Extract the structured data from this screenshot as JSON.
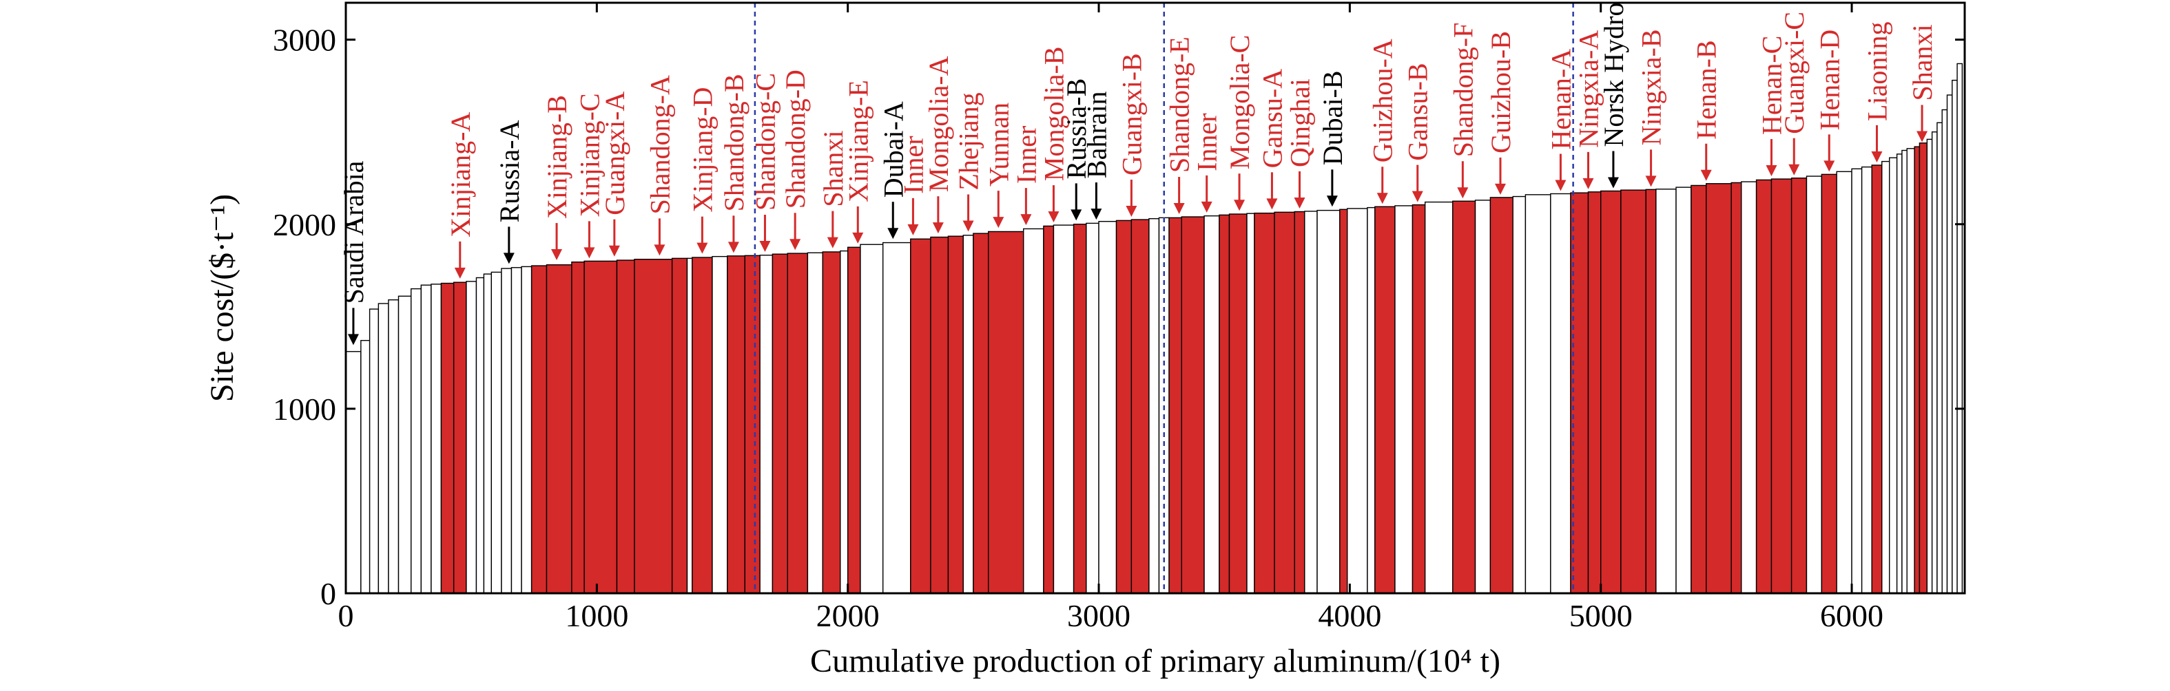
{
  "chart_data": {
    "type": "bar",
    "subtype": "cost-curve (variable-width cumulative bars)",
    "xlabel": "Cumulative production of primary aluminum/(10⁴ t)",
    "ylabel": "Site cost/($·t⁻¹)",
    "xlim": [
      0,
      6450
    ],
    "ylim": [
      0,
      3200
    ],
    "xticks": [
      0,
      1000,
      2000,
      3000,
      4000,
      5000,
      6000
    ],
    "yticks": [
      0,
      1000,
      2000,
      3000
    ],
    "grid": false,
    "legend": "none",
    "colors": {
      "highlight": "#d42a2a",
      "normal": "#ffffff",
      "label_red": "#d42a2a",
      "label_black": "#000000",
      "guide_line": "#2a3aa8"
    },
    "vertical_guides_x": [
      1630,
      3260,
      4890
    ],
    "bars": [
      [
        0,
        60,
        1310,
        0
      ],
      [
        60,
        95,
        1370,
        0
      ],
      [
        95,
        130,
        1540,
        0
      ],
      [
        130,
        170,
        1570,
        0
      ],
      [
        170,
        210,
        1590,
        0
      ],
      [
        210,
        260,
        1610,
        0
      ],
      [
        260,
        300,
        1650,
        0
      ],
      [
        300,
        340,
        1670,
        0
      ],
      [
        340,
        380,
        1675,
        0
      ],
      [
        380,
        430,
        1680,
        1
      ],
      [
        430,
        480,
        1685,
        1
      ],
      [
        480,
        520,
        1690,
        0
      ],
      [
        520,
        550,
        1710,
        0
      ],
      [
        550,
        580,
        1730,
        0
      ],
      [
        580,
        620,
        1740,
        0
      ],
      [
        620,
        660,
        1760,
        0
      ],
      [
        660,
        700,
        1765,
        0
      ],
      [
        700,
        740,
        1770,
        0
      ],
      [
        740,
        800,
        1775,
        1
      ],
      [
        800,
        900,
        1780,
        1
      ],
      [
        900,
        950,
        1795,
        1
      ],
      [
        950,
        1080,
        1800,
        1
      ],
      [
        1080,
        1150,
        1805,
        1
      ],
      [
        1150,
        1300,
        1810,
        1
      ],
      [
        1300,
        1360,
        1815,
        1
      ],
      [
        1360,
        1380,
        1815,
        0
      ],
      [
        1380,
        1460,
        1820,
        1
      ],
      [
        1460,
        1520,
        1825,
        0
      ],
      [
        1520,
        1590,
        1828,
        1
      ],
      [
        1590,
        1650,
        1830,
        1
      ],
      [
        1650,
        1700,
        1832,
        0
      ],
      [
        1700,
        1760,
        1838,
        1
      ],
      [
        1760,
        1840,
        1842,
        1
      ],
      [
        1840,
        1900,
        1845,
        0
      ],
      [
        1900,
        1970,
        1850,
        1
      ],
      [
        1970,
        2000,
        1855,
        0
      ],
      [
        2000,
        2050,
        1875,
        1
      ],
      [
        2050,
        2140,
        1890,
        0
      ],
      [
        2140,
        2250,
        1900,
        0
      ],
      [
        2250,
        2330,
        1920,
        1
      ],
      [
        2330,
        2400,
        1930,
        1
      ],
      [
        2400,
        2460,
        1935,
        1
      ],
      [
        2460,
        2500,
        1940,
        0
      ],
      [
        2500,
        2560,
        1950,
        1
      ],
      [
        2560,
        2700,
        1960,
        1
      ],
      [
        2700,
        2780,
        1975,
        0
      ],
      [
        2780,
        2820,
        1990,
        1
      ],
      [
        2820,
        2900,
        1995,
        0
      ],
      [
        2900,
        2950,
        2000,
        1
      ],
      [
        2950,
        3000,
        2005,
        0
      ],
      [
        3000,
        3070,
        2015,
        0
      ],
      [
        3070,
        3130,
        2020,
        1
      ],
      [
        3130,
        3200,
        2025,
        1
      ],
      [
        3200,
        3240,
        2030,
        0
      ],
      [
        3240,
        3280,
        2035,
        0
      ],
      [
        3280,
        3330,
        2035,
        1
      ],
      [
        3330,
        3420,
        2040,
        1
      ],
      [
        3420,
        3480,
        2045,
        0
      ],
      [
        3480,
        3520,
        2050,
        1
      ],
      [
        3520,
        3590,
        2055,
        1
      ],
      [
        3590,
        3620,
        2058,
        0
      ],
      [
        3620,
        3700,
        2060,
        1
      ],
      [
        3700,
        3780,
        2065,
        1
      ],
      [
        3780,
        3820,
        2068,
        1
      ],
      [
        3820,
        3870,
        2070,
        0
      ],
      [
        3870,
        3960,
        2075,
        0
      ],
      [
        3960,
        3990,
        2080,
        1
      ],
      [
        3990,
        4070,
        2085,
        0
      ],
      [
        4070,
        4100,
        2090,
        0
      ],
      [
        4100,
        4180,
        2095,
        1
      ],
      [
        4180,
        4250,
        2100,
        0
      ],
      [
        4250,
        4300,
        2105,
        1
      ],
      [
        4300,
        4410,
        2120,
        0
      ],
      [
        4410,
        4500,
        2125,
        1
      ],
      [
        4500,
        4560,
        2130,
        0
      ],
      [
        4560,
        4650,
        2145,
        1
      ],
      [
        4650,
        4700,
        2150,
        0
      ],
      [
        4700,
        4800,
        2160,
        0
      ],
      [
        4800,
        4880,
        2165,
        0
      ],
      [
        4880,
        4950,
        2170,
        1
      ],
      [
        4950,
        5000,
        2175,
        1
      ],
      [
        5000,
        5080,
        2180,
        1
      ],
      [
        5080,
        5180,
        2185,
        1
      ],
      [
        5180,
        5220,
        2188,
        1
      ],
      [
        5220,
        5300,
        2190,
        0
      ],
      [
        5300,
        5360,
        2200,
        0
      ],
      [
        5360,
        5420,
        2210,
        1
      ],
      [
        5420,
        5520,
        2220,
        1
      ],
      [
        5520,
        5560,
        2225,
        1
      ],
      [
        5560,
        5620,
        2230,
        0
      ],
      [
        5620,
        5680,
        2240,
        1
      ],
      [
        5680,
        5760,
        2245,
        1
      ],
      [
        5760,
        5820,
        2250,
        1
      ],
      [
        5820,
        5880,
        2260,
        0
      ],
      [
        5880,
        5940,
        2270,
        1
      ],
      [
        5940,
        6000,
        2285,
        0
      ],
      [
        6000,
        6040,
        2300,
        0
      ],
      [
        6040,
        6080,
        2310,
        0
      ],
      [
        6080,
        6120,
        2320,
        1
      ],
      [
        6120,
        6150,
        2340,
        0
      ],
      [
        6150,
        6180,
        2360,
        0
      ],
      [
        6180,
        6200,
        2380,
        0
      ],
      [
        6200,
        6220,
        2400,
        0
      ],
      [
        6220,
        6250,
        2410,
        0
      ],
      [
        6250,
        6270,
        2420,
        1
      ],
      [
        6270,
        6300,
        2440,
        1
      ],
      [
        6300,
        6320,
        2460,
        0
      ],
      [
        6320,
        6340,
        2500,
        0
      ],
      [
        6340,
        6360,
        2550,
        0
      ],
      [
        6360,
        6380,
        2620,
        0
      ],
      [
        6380,
        6400,
        2700,
        0
      ],
      [
        6400,
        6420,
        2780,
        0
      ],
      [
        6420,
        6440,
        2870,
        0
      ]
    ],
    "annotations": [
      {
        "text": "Saudi Arabia",
        "x": 30,
        "y": 1330,
        "color": "black",
        "vertical": true
      },
      {
        "text": "Xinjiang-A",
        "x": 455,
        "y": 1690,
        "color": "red",
        "vertical": true
      },
      {
        "text": "Russia-A",
        "x": 650,
        "y": 1770,
        "color": "black",
        "vertical": true
      },
      {
        "text": "Xinjiang-B",
        "x": 840,
        "y": 1790,
        "color": "red",
        "vertical": true
      },
      {
        "text": "Xinjiang-C",
        "x": 970,
        "y": 1800,
        "color": "red",
        "vertical": true
      },
      {
        "text": "Guangxi-A",
        "x": 1070,
        "y": 1810,
        "color": "red",
        "vertical": true
      },
      {
        "text": "Shandong-A",
        "x": 1250,
        "y": 1815,
        "color": "red",
        "vertical": true
      },
      {
        "text": "Xinjiang-D",
        "x": 1420,
        "y": 1825,
        "color": "red",
        "vertical": true
      },
      {
        "text": "Shandong-B",
        "x": 1545,
        "y": 1830,
        "color": "red",
        "vertical": true
      },
      {
        "text": "Shandong-C",
        "x": 1670,
        "y": 1835,
        "color": "red",
        "vertical": true
      },
      {
        "text": "Shandong-D",
        "x": 1790,
        "y": 1845,
        "color": "red",
        "vertical": true
      },
      {
        "text": "Shanxi",
        "x": 1940,
        "y": 1855,
        "color": "red",
        "vertical": true
      },
      {
        "text": "Xinjiang-E",
        "x": 2040,
        "y": 1880,
        "color": "red",
        "vertical": true
      },
      {
        "text": "Dubai-A",
        "x": 2180,
        "y": 1905,
        "color": "black",
        "vertical": true
      },
      {
        "text": "Inner",
        "x": 2260,
        "y": 1925,
        "color": "red",
        "vertical": true
      },
      {
        "text": "Mongolia-A",
        "x": 2360,
        "y": 1935,
        "color": "red",
        "vertical": true
      },
      {
        "text": "Zhejiang",
        "x": 2480,
        "y": 1945,
        "color": "red",
        "vertical": true
      },
      {
        "text": "Yunnan",
        "x": 2600,
        "y": 1965,
        "color": "red",
        "vertical": true
      },
      {
        "text": "Inner",
        "x": 2710,
        "y": 1980,
        "color": "red",
        "vertical": true
      },
      {
        "text": "Mongolia-B",
        "x": 2820,
        "y": 1995,
        "color": "red",
        "vertical": true
      },
      {
        "text": "Russia-B",
        "x": 2910,
        "y": 2005,
        "color": "black",
        "vertical": true
      },
      {
        "text": "Bahrain",
        "x": 2990,
        "y": 2010,
        "color": "black",
        "vertical": true
      },
      {
        "text": "Guangxi-B",
        "x": 3130,
        "y": 2025,
        "color": "red",
        "vertical": true
      },
      {
        "text": "Shandong-E",
        "x": 3320,
        "y": 2040,
        "color": "red",
        "vertical": true
      },
      {
        "text": "Inner",
        "x": 3430,
        "y": 2048,
        "color": "red",
        "vertical": true
      },
      {
        "text": "Mongolia-C",
        "x": 3560,
        "y": 2058,
        "color": "red",
        "vertical": true
      },
      {
        "text": "Gansu-A",
        "x": 3690,
        "y": 2065,
        "color": "red",
        "vertical": true
      },
      {
        "text": "Qinghai",
        "x": 3800,
        "y": 2070,
        "color": "red",
        "vertical": true
      },
      {
        "text": "Dubai-B",
        "x": 3930,
        "y": 2080,
        "color": "black",
        "vertical": true
      },
      {
        "text": "Guizhou-A",
        "x": 4130,
        "y": 2095,
        "color": "red",
        "vertical": true
      },
      {
        "text": "Gansu-B",
        "x": 4270,
        "y": 2105,
        "color": "red",
        "vertical": true
      },
      {
        "text": "Shandong-F",
        "x": 4450,
        "y": 2125,
        "color": "red",
        "vertical": true
      },
      {
        "text": "Guizhou-B",
        "x": 4600,
        "y": 2145,
        "color": "red",
        "vertical": true
      },
      {
        "text": "Henan-A",
        "x": 4840,
        "y": 2165,
        "color": "red",
        "vertical": true
      },
      {
        "text": "Ningxia-A",
        "x": 4950,
        "y": 2175,
        "color": "red",
        "vertical": true
      },
      {
        "text": "Norsk Hydro",
        "x": 5050,
        "y": 2180,
        "color": "black",
        "vertical": true
      },
      {
        "text": "Ningxia-B",
        "x": 5200,
        "y": 2188,
        "color": "red",
        "vertical": true
      },
      {
        "text": "Henan-B",
        "x": 5420,
        "y": 2220,
        "color": "red",
        "vertical": true
      },
      {
        "text": "Henan-C",
        "x": 5680,
        "y": 2245,
        "color": "red",
        "vertical": true
      },
      {
        "text": "Guangxi-C",
        "x": 5770,
        "y": 2250,
        "color": "red",
        "vertical": true
      },
      {
        "text": "Henan-D",
        "x": 5910,
        "y": 2270,
        "color": "red",
        "vertical": true
      },
      {
        "text": "Liaoning",
        "x": 6100,
        "y": 2320,
        "color": "red",
        "vertical": true
      },
      {
        "text": "Shanxi",
        "x": 6280,
        "y": 2430,
        "color": "red",
        "vertical": true
      }
    ]
  }
}
